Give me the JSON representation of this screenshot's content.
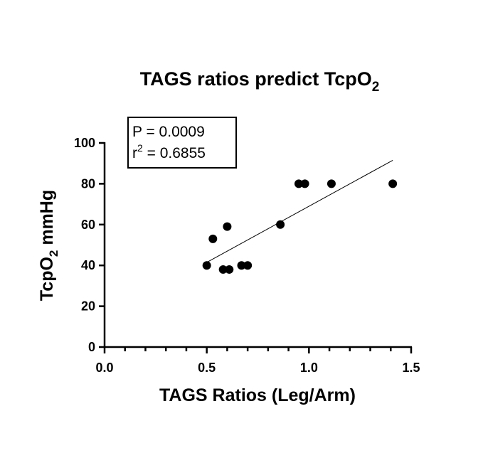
{
  "chart_data": {
    "type": "scatter",
    "title": "TAGS ratios predict TcpO",
    "title_subscript": "2",
    "xlabel": "TAGS Ratios (Leg/Arm)",
    "ylabel_main": "TcpO",
    "ylabel_subscript": "2",
    "ylabel_suffix": " mmHg",
    "xlim": [
      0.0,
      1.5
    ],
    "ylim": [
      0,
      100
    ],
    "x_ticks": [
      "0.0",
      "0.5",
      "1.0",
      "1.5"
    ],
    "x_tick_values": [
      0.0,
      0.5,
      1.0,
      1.5
    ],
    "x_minor_step": 0.1,
    "y_ticks": [
      "0",
      "20",
      "40",
      "60",
      "80",
      "100"
    ],
    "y_tick_values": [
      0,
      20,
      40,
      60,
      80,
      100
    ],
    "grid": false,
    "points": [
      {
        "x": 0.5,
        "y": 40
      },
      {
        "x": 0.53,
        "y": 53
      },
      {
        "x": 0.58,
        "y": 38
      },
      {
        "x": 0.6,
        "y": 59
      },
      {
        "x": 0.61,
        "y": 38
      },
      {
        "x": 0.67,
        "y": 40
      },
      {
        "x": 0.7,
        "y": 40
      },
      {
        "x": 0.86,
        "y": 60
      },
      {
        "x": 0.95,
        "y": 80
      },
      {
        "x": 0.98,
        "y": 80
      },
      {
        "x": 1.11,
        "y": 80
      },
      {
        "x": 1.41,
        "y": 80
      }
    ],
    "regression_line": {
      "x_start": 0.5,
      "y_start": 41.5,
      "x_end": 1.41,
      "y_end": 91.5
    },
    "stats": {
      "p_label": "P = 0.0009",
      "r_prefix": "r",
      "r_superscript": "2",
      "r_value_text": " = 0.6855"
    },
    "colors": {
      "points": "#000000",
      "line": "#000000",
      "axes": "#000000"
    }
  }
}
